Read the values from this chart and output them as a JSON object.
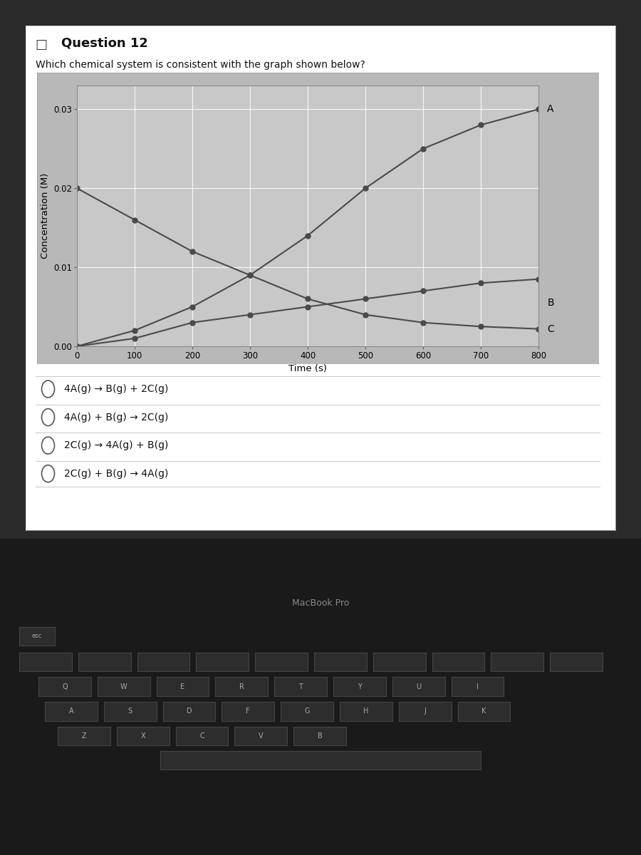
{
  "title": "Question 12",
  "question_text": "Which chemical system is consistent with the graph shown below?",
  "xlabel": "Time (s)",
  "ylabel": "Concentration (M)",
  "xlim": [
    0,
    800
  ],
  "ylim": [
    0.0,
    0.033
  ],
  "yticks": [
    0.0,
    0.01,
    0.02,
    0.03
  ],
  "xticks": [
    0,
    100,
    200,
    300,
    400,
    500,
    600,
    700,
    800
  ],
  "time_A": [
    0,
    100,
    200,
    300,
    400,
    500,
    600,
    700,
    800
  ],
  "conc_A": [
    0.0,
    0.002,
    0.005,
    0.009,
    0.014,
    0.02,
    0.025,
    0.028,
    0.03
  ],
  "time_B": [
    0,
    100,
    200,
    300,
    400,
    500,
    600,
    700,
    800
  ],
  "conc_B": [
    0.02,
    0.016,
    0.012,
    0.009,
    0.006,
    0.004,
    0.003,
    0.0025,
    0.0022
  ],
  "time_C": [
    0,
    100,
    200,
    300,
    400,
    500,
    600,
    700,
    800
  ],
  "conc_C": [
    0.0,
    0.001,
    0.003,
    0.004,
    0.005,
    0.006,
    0.007,
    0.008,
    0.0085
  ],
  "line_color": "#4a4a4a",
  "marker": "o",
  "markersize": 5,
  "label_A": "A",
  "label_B": "B",
  "label_C": "C",
  "options": [
    "4A(g) → B(g) + 2C(g)",
    "4A(g) + B(g) → 2C(g)",
    "2C(g) → 4A(g) + B(g)",
    "2C(g) + B(g) → 4A(g)"
  ],
  "chart_bg_color": "#b8b8b8",
  "plot_bg_color": "#c8c8c8",
  "white_panel_color": "#ffffff",
  "page_bg_color": "#e8e8e8",
  "laptop_bg_color": "#2a2a2a",
  "keyboard_color": "#3a3a3a"
}
